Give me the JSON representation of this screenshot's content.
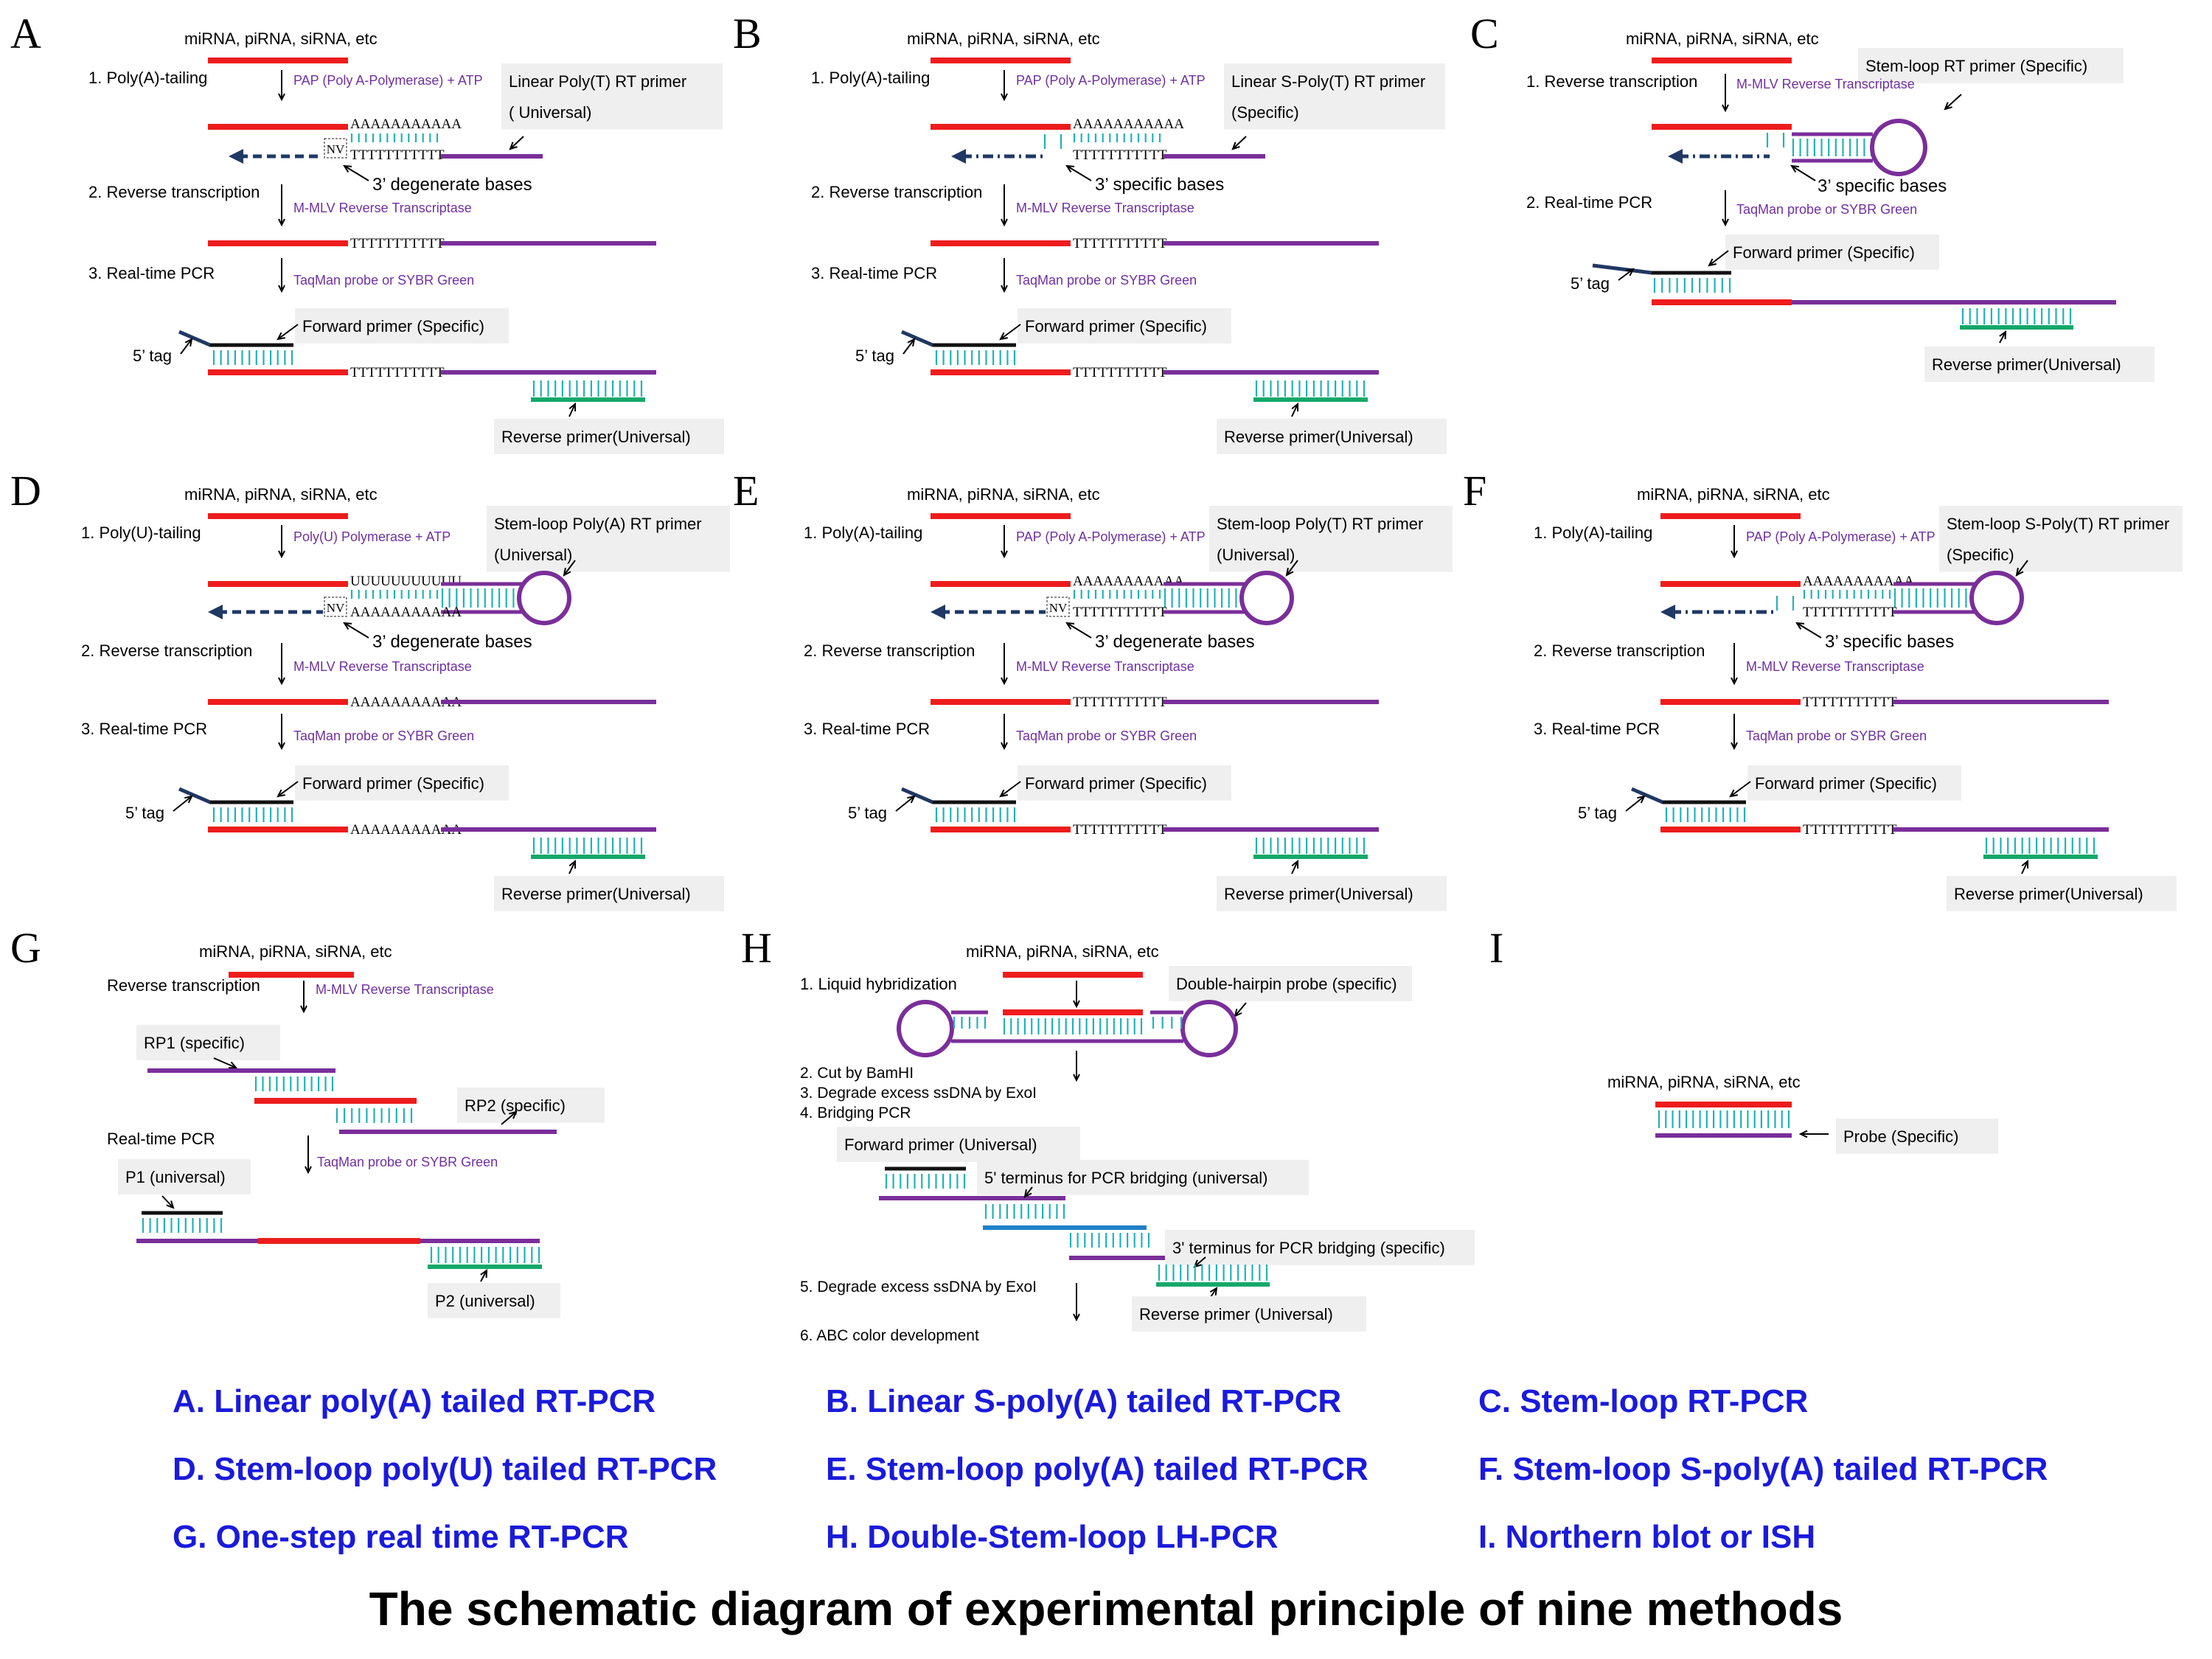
{
  "colors": {
    "rna": "#ee1c1c",
    "primer": "#7a2e9a",
    "teal": "#22b2b8",
    "green": "#13a86a",
    "navy": "#1f3864",
    "blue": "#1f7fc8",
    "enzyme": "#7030a0",
    "label_box": "#efefef",
    "legend": "#1a1adc"
  },
  "panels": {
    "A": {
      "letter": "A",
      "rna": "miRNA,  piRNA,  siRNA,  etc",
      "step1": "1. Poly(A)-tailing",
      "enzyme1": "PAP (Poly A-Polymerase) + ATP",
      "primer": "Linear Poly(T) RT primer",
      "primer_sub": "( Universal)",
      "polyA": "AAAAAAAAAAA",
      "polyT": "TTTTTTTTTTT",
      "nv": "NV",
      "bases": "3’ degenerate bases",
      "step2": "2. Reverse transcription",
      "enzyme2": "M-MLV Reverse Transcriptase",
      "step3": "3. Real-time  PCR",
      "enzyme3": "TaqMan probe or  SYBR Green",
      "fwd": "Forward primer (Specific)",
      "tag": "5’ tag",
      "rev": "Reverse primer(Universal)"
    },
    "B": {
      "letter": "B",
      "rna": "miRNA,  piRNA,  siRNA,  etc",
      "step1": "1. Poly(A)-tailing",
      "enzyme1": "PAP (Poly A-Polymerase) + ATP",
      "primer": "Linear S-Poly(T) RT primer",
      "primer_sub": "(Specific)",
      "polyA": "AAAAAAAAAAA",
      "polyT": "TTTTTTTTTTT",
      "bases": "3’ specific bases",
      "step2": "2. Reverse transcription",
      "enzyme2": "M-MLV Reverse Transcriptase",
      "step3": "3. Real-time  PCR",
      "enzyme3": "TaqMan probe or  SYBR Green",
      "fwd": "Forward primer (Specific)",
      "tag": "5’ tag",
      "rev": "Reverse primer(Universal)"
    },
    "C": {
      "letter": "C",
      "rna": "miRNA,  piRNA,  siRNA,  etc",
      "step1": "1. Reverse transcription",
      "enzyme1": "M-MLV Reverse Transcriptase",
      "primer": "Stem-loop  RT primer  (Specific)",
      "bases": "3’ specific bases",
      "step2": "2. Real-time  PCR",
      "enzyme2": "TaqMan probe or  SYBR Green",
      "fwd": "Forward primer (Specific)",
      "tag": "5’ tag",
      "rev": "Reverse primer(Universal)"
    },
    "D": {
      "letter": "D",
      "rna": "miRNA,  piRNA,  siRNA,  etc",
      "step1": "1. Poly(U)-tailing",
      "enzyme1": "Poly(U) Polymerase + ATP",
      "primer": "Stem-loop  Poly(A) RT primer",
      "primer_sub": "(Universal)",
      "polyU": "UUUUUUUUUUU",
      "polyA": "AAAAAAAAAAA",
      "nv": "NV",
      "bases": "3’ degenerate bases",
      "step2": "2. Reverse transcription",
      "enzyme2": "M-MLV Reverse Transcriptase",
      "step3": "3. Real-time  PCR",
      "enzyme3": "TaqMan probe or  SYBR Green",
      "fwd": "Forward primer (Specific)",
      "tag": "5’ tag",
      "rev": "Reverse primer(Universal)"
    },
    "E": {
      "letter": "E",
      "rna": "miRNA,  piRNA,  siRNA,  etc",
      "step1": "1. Poly(A)-tailing",
      "enzyme1": "PAP (Poly A-Polymerase) + ATP",
      "primer": "Stem-loop  Poly(T) RT primer",
      "primer_sub": "(Universal)",
      "polyA": "AAAAAAAAAAA",
      "polyT": "TTTTTTTTTTT",
      "nv": "NV",
      "bases": "3’ degenerate bases",
      "step2": "2. Reverse transcription",
      "enzyme2": "M-MLV Reverse Transcriptase",
      "step3": "3. Real-time  PCR",
      "enzyme3": "TaqMan probe or  SYBR Green",
      "fwd": "Forward primer (Specific)",
      "tag": "5’ tag",
      "rev": "Reverse primer(Universal)"
    },
    "F": {
      "letter": "F",
      "rna": "miRNA,  piRNA,  siRNA,  etc",
      "step1": "1. Poly(A)-tailing",
      "enzyme1": "PAP (Poly A-Polymerase) + ATP",
      "primer": "Stem-loop  S-Poly(T)  RT primer",
      "primer_sub": "(Specific)",
      "polyA": "AAAAAAAAAAA",
      "polyT": "TTTTTTTTTTT",
      "bases": "3’ specific bases",
      "step2": "2. Reverse transcription",
      "enzyme2": "M-MLV Reverse Transcriptase",
      "step3": "3. Real-time  PCR",
      "enzyme3": "TaqMan probe or  SYBR Green",
      "fwd": "Forward primer (Specific)",
      "tag": "5’ tag",
      "rev": "Reverse primer(Universal)"
    },
    "G": {
      "letter": "G",
      "rna": "miRNA,  piRNA,  siRNA,  etc",
      "step1": "Reverse transcription",
      "enzyme1": "M-MLV Reverse Transcriptase",
      "rp1": "RP1 (specific)",
      "rp2": "RP2 (specific)",
      "step2": "Real-time PCR",
      "enzyme2": "TaqMan probe or  SYBR Green",
      "p1": "P1 (universal)",
      "p2": "P2 (universal)"
    },
    "H": {
      "letter": "H",
      "rna": "miRNA,  piRNA,  siRNA,  etc",
      "step1": "1. Liquid hybridization",
      "probe": "Double-hairpin probe (specific)",
      "step2": "2. Cut by BamHI",
      "step3": "3. Degrade excess ssDNA by ExoI",
      "step4": "4. Bridging PCR",
      "fwd": "Forward primer (Universal)",
      "bridge5": "5' terminus for PCR bridging (universal)",
      "bridge3": "3' terminus for PCR bridging  (specific)",
      "step5": "5. Degrade excess ssDNA by ExoI",
      "rev": "Reverse primer  (Universal)",
      "step6": "6. ABC color development"
    },
    "I": {
      "letter": "I",
      "rna": "miRNA,  piRNA,  siRNA,  etc",
      "probe": "Probe  (Specific)"
    }
  },
  "legend": [
    "A. Linear poly(A) tailed RT-PCR",
    "B. Linear S-poly(A) tailed RT-PCR",
    "C. Stem-loop RT-PCR",
    "D. Stem-loop poly(U) tailed RT-PCR",
    "E. Stem-loop poly(A) tailed RT-PCR",
    "F. Stem-loop S-poly(A) tailed RT-PCR",
    "G. One-step real time RT-PCR",
    "H. Double-Stem-loop LH-PCR",
    "I. Northern blot or ISH"
  ],
  "title": "The schematic diagram of experimental principle of nine methods"
}
